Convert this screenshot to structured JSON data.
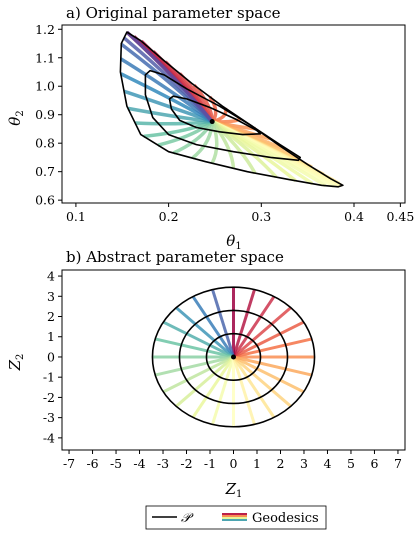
{
  "chart_data": [
    {
      "type": "line",
      "title": "a) Original parameter space",
      "xlabel": "θ1",
      "ylabel": "θ2",
      "xlim": [
        0.085,
        0.455
      ],
      "ylim": [
        0.59,
        1.215
      ],
      "xticks": [
        0.1,
        0.2,
        0.3,
        0.4,
        0.45
      ],
      "xtick_labels": [
        "0.1",
        "0.2",
        "0.3",
        "0.4",
        "0.45"
      ],
      "yticks": [
        0.6,
        0.7,
        0.8,
        0.9,
        1.0,
        1.1,
        1.2
      ],
      "ytick_labels": [
        "0.6",
        "0.7",
        "0.8",
        "0.9",
        "1.0",
        "1.1",
        "1.2"
      ],
      "center": [
        0.247,
        0.876
      ],
      "contours": [
        [
          [
            0.155,
            1.19
          ],
          [
            0.17,
            1.16
          ],
          [
            0.195,
            1.09
          ],
          [
            0.225,
            1.01
          ],
          [
            0.258,
            0.93
          ],
          [
            0.29,
            0.86
          ],
          [
            0.32,
            0.79
          ],
          [
            0.35,
            0.725
          ],
          [
            0.375,
            0.675
          ],
          [
            0.388,
            0.652
          ],
          [
            0.383,
            0.647
          ],
          [
            0.365,
            0.652
          ],
          [
            0.33,
            0.672
          ],
          [
            0.285,
            0.7
          ],
          [
            0.24,
            0.735
          ],
          [
            0.2,
            0.77
          ],
          [
            0.17,
            0.83
          ],
          [
            0.155,
            0.93
          ],
          [
            0.148,
            1.05
          ],
          [
            0.149,
            1.15
          ],
          [
            0.155,
            1.19
          ]
        ],
        [
          [
            0.18,
            1.055
          ],
          [
            0.195,
            1.04
          ],
          [
            0.22,
            0.99
          ],
          [
            0.255,
            0.93
          ],
          [
            0.29,
            0.86
          ],
          [
            0.32,
            0.795
          ],
          [
            0.342,
            0.75
          ],
          [
            0.34,
            0.74
          ],
          [
            0.31,
            0.75
          ],
          [
            0.27,
            0.77
          ],
          [
            0.23,
            0.795
          ],
          [
            0.2,
            0.83
          ],
          [
            0.183,
            0.89
          ],
          [
            0.175,
            0.97
          ],
          [
            0.175,
            1.04
          ],
          [
            0.18,
            1.055
          ]
        ],
        [
          [
            0.205,
            0.965
          ],
          [
            0.22,
            0.955
          ],
          [
            0.245,
            0.925
          ],
          [
            0.272,
            0.885
          ],
          [
            0.295,
            0.845
          ],
          [
            0.299,
            0.833
          ],
          [
            0.28,
            0.83
          ],
          [
            0.255,
            0.84
          ],
          [
            0.23,
            0.855
          ],
          [
            0.212,
            0.88
          ],
          [
            0.203,
            0.92
          ],
          [
            0.201,
            0.955
          ],
          [
            0.205,
            0.965
          ]
        ]
      ],
      "contour_label": "𝒫",
      "geodesics_label": "Geodesics"
    },
    {
      "type": "line",
      "title": "b) Abstract parameter space",
      "xlabel": "Z1",
      "ylabel": "Z2",
      "xlim": [
        -7.3,
        7.3
      ],
      "ylim": [
        -4.6,
        4.3
      ],
      "xticks": [
        -7,
        -6,
        -5,
        -4,
        -3,
        -2,
        -1,
        0,
        1,
        2,
        3,
        4,
        5,
        6,
        7
      ],
      "xtick_labels": [
        "-7",
        "-6",
        "-5",
        "-4",
        "-3",
        "-2",
        "-1",
        "0",
        "1",
        "2",
        "3",
        "4",
        "5",
        "6",
        "7"
      ],
      "yticks": [
        -4,
        -3,
        -2,
        -1,
        0,
        1,
        2,
        3,
        4
      ],
      "ytick_labels": [
        "-4",
        "-3",
        "-2",
        "-1",
        "0",
        "1",
        "2",
        "3",
        "4"
      ],
      "center": [
        0,
        0
      ],
      "circle_radii": [
        1.15,
        2.3,
        3.45
      ],
      "geodesic_count": 24
    }
  ],
  "legend": {
    "contour_label": "𝒫",
    "geodesics_label": "Geodesics"
  }
}
